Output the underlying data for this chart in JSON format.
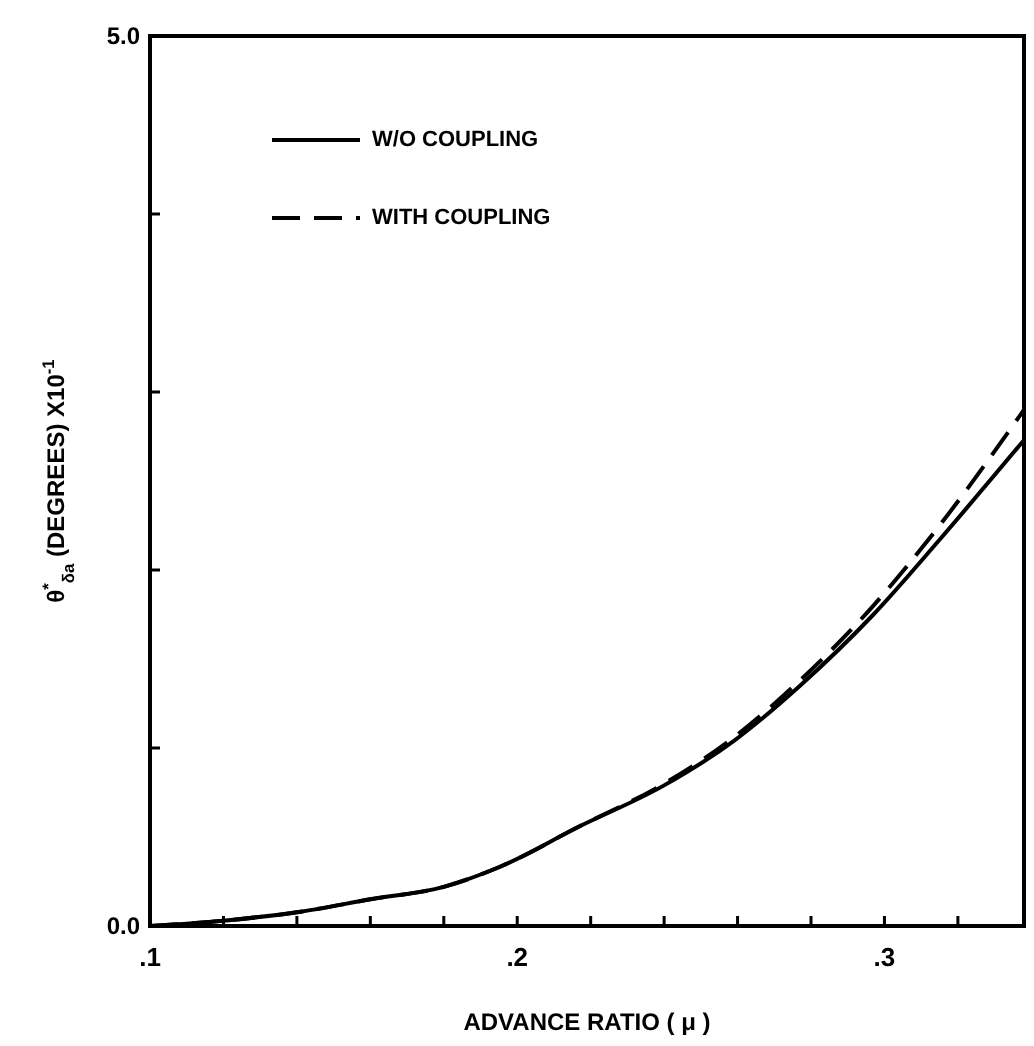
{
  "chart_data": {
    "type": "line",
    "xlabel": "ADVANCE RATIO ( μ )",
    "ylabel": "θ$^{*}$$_{δa}$ (DEGREES)  X10$^{-1}$",
    "xlim": [
      0.1,
      0.338
    ],
    "xticks": [
      {
        "value": 0.1,
        "label": ".1"
      },
      {
        "value": 0.12,
        "label": null
      },
      {
        "value": 0.14,
        "label": null
      },
      {
        "value": 0.16,
        "label": null
      },
      {
        "value": 0.18,
        "label": null
      },
      {
        "value": 0.2,
        "label": ".2"
      },
      {
        "value": 0.22,
        "label": null
      },
      {
        "value": 0.24,
        "label": null
      },
      {
        "value": 0.26,
        "label": null
      },
      {
        "value": 0.28,
        "label": null
      },
      {
        "value": 0.3,
        "label": ".3"
      },
      {
        "value": 0.32,
        "label": null
      }
    ],
    "ylim": [
      0,
      5
    ],
    "yticks": [
      {
        "value": 0,
        "label": "0.0"
      },
      {
        "value": 1,
        "label": null
      },
      {
        "value": 2,
        "label": null
      },
      {
        "value": 3,
        "label": null
      },
      {
        "value": 4,
        "label": null
      },
      {
        "value": 5,
        "label": "5.0"
      }
    ],
    "x": [
      0.1,
      0.12,
      0.141,
      0.16,
      0.18,
      0.195,
      0.217,
      0.24,
      0.259,
      0.277,
      0.297,
      0.315,
      0.338
    ],
    "series": [
      {
        "name": "W/O COUPLING",
        "color": "#000000",
        "line_style": "solid",
        "values": [
          0,
          0.03,
          0.08,
          0.15,
          0.22,
          0.33,
          0.56,
          0.79,
          1.04,
          1.35,
          1.75,
          2.17,
          2.73
        ]
      },
      {
        "name": "WITH COUPLING",
        "color": "#000000",
        "line_style": "dashed",
        "values": [
          0,
          0.03,
          0.08,
          0.15,
          0.22,
          0.33,
          0.56,
          0.8,
          1.06,
          1.38,
          1.8,
          2.25,
          2.9
        ]
      }
    ],
    "legend": "top left",
    "grid": false,
    "marker": "none"
  }
}
